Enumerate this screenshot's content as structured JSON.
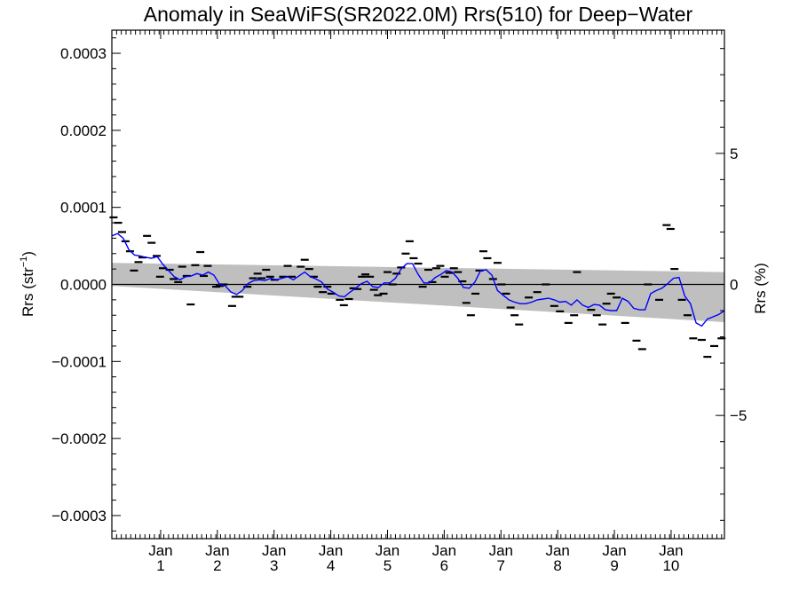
{
  "chart_data": {
    "type": "line",
    "title": "Anomaly in SeaWiFS(SR2022.0M) Rrs(510) for Deep−Water",
    "ylabel_left": {
      "main": "Rrs (str",
      "sup": "−1",
      "tail": ")"
    },
    "ylabel_right": "Rrs (%)",
    "xlim": [
      0,
      10.8
    ],
    "ylim": [
      -0.00033,
      0.00033
    ],
    "ylim_right": [
      -9.7,
      9.7
    ],
    "x_ticks": [
      {
        "x": 0.86,
        "line1": "Jan",
        "line2": "1"
      },
      {
        "x": 1.86,
        "line1": "Jan",
        "line2": "2"
      },
      {
        "x": 2.86,
        "line1": "Jan",
        "line2": "3"
      },
      {
        "x": 3.86,
        "line1": "Jan",
        "line2": "4"
      },
      {
        "x": 4.86,
        "line1": "Jan",
        "line2": "5"
      },
      {
        "x": 5.86,
        "line1": "Jan",
        "line2": "6"
      },
      {
        "x": 6.86,
        "line1": "Jan",
        "line2": "7"
      },
      {
        "x": 7.86,
        "line1": "Jan",
        "line2": "8"
      },
      {
        "x": 8.86,
        "line1": "Jan",
        "line2": "9"
      },
      {
        "x": 9.86,
        "line1": "Jan",
        "line2": "10"
      }
    ],
    "y_ticks_left": [
      {
        "v": 0.0003,
        "label": "0.0003"
      },
      {
        "v": 0.0002,
        "label": "0.0002"
      },
      {
        "v": 0.0001,
        "label": "0.0001"
      },
      {
        "v": 0.0,
        "label": "0.0000"
      },
      {
        "v": -0.0001,
        "label": "−0.0001"
      },
      {
        "v": -0.0002,
        "label": "−0.0002"
      },
      {
        "v": -0.0003,
        "label": "−0.0003"
      }
    ],
    "y_ticks_right": [
      {
        "v": 5,
        "label": "5"
      },
      {
        "v": 0,
        "label": "0"
      },
      {
        "v": -5,
        "label": "−5"
      }
    ],
    "zero_line": 0,
    "band": {
      "color": "#bfbfbf",
      "upper": [
        [
          0.0,
          2.8e-05
        ],
        [
          10.8,
          1.6e-05
        ]
      ],
      "lower": [
        [
          0.0,
          -2e-06
        ],
        [
          10.8,
          -4.9e-05
        ]
      ]
    },
    "series": [
      {
        "style": "dash-markers",
        "color": "#000000",
        "points": [
          [
            0.03,
            8.7e-05
          ],
          [
            0.11,
            8e-05
          ],
          [
            0.18,
            6.8e-05
          ],
          [
            0.24,
            5.6e-05
          ],
          [
            0.32,
            4.3e-05
          ],
          [
            0.39,
            1.8e-05
          ],
          [
            0.47,
            2.9e-05
          ],
          [
            0.54,
            3.5e-05
          ],
          [
            0.62,
            6.3e-05
          ],
          [
            0.7,
            5.4e-05
          ],
          [
            0.79,
            3.7e-05
          ],
          [
            0.85,
            1e-05
          ],
          [
            0.9,
            2.1e-05
          ],
          [
            1.02,
            1.9e-05
          ],
          [
            1.09,
            7e-06
          ],
          [
            1.17,
            3e-06
          ],
          [
            1.24,
            2.3e-05
          ],
          [
            1.32,
            1.1e-05
          ],
          [
            1.39,
            -2.6e-05
          ],
          [
            1.47,
            2.5e-05
          ],
          [
            1.56,
            4.2e-05
          ],
          [
            1.62,
            1.1e-05
          ],
          [
            1.69,
            2.4e-05
          ],
          [
            1.84,
            -3e-06
          ],
          [
            1.9,
            -2e-06
          ],
          [
            1.97,
            0.0
          ],
          [
            2.12,
            -2.8e-05
          ],
          [
            2.18,
            -1.6e-05
          ],
          [
            2.25,
            -1.6e-05
          ],
          [
            2.39,
            -3e-06
          ],
          [
            2.49,
            8e-06
          ],
          [
            2.57,
            1.4e-05
          ],
          [
            2.64,
            8e-06
          ],
          [
            2.72,
            1.9e-05
          ],
          [
            2.79,
            1e-05
          ],
          [
            2.87,
            6e-06
          ],
          [
            3.02,
            1e-05
          ],
          [
            3.1,
            2.4e-05
          ],
          [
            3.17,
            1e-05
          ],
          [
            3.33,
            2.3e-05
          ],
          [
            3.4,
            3.2e-05
          ],
          [
            3.48,
            2e-05
          ],
          [
            3.56,
            1e-05
          ],
          [
            3.63,
            -3e-06
          ],
          [
            3.72,
            -1e-05
          ],
          [
            3.8,
            -3e-06
          ],
          [
            3.87,
            -1.2e-05
          ],
          [
            4.02,
            -2e-05
          ],
          [
            4.09,
            -2.7e-05
          ],
          [
            4.18,
            -1.9e-05
          ],
          [
            4.26,
            -5e-06
          ],
          [
            4.33,
            -6e-06
          ],
          [
            4.41,
            1e-05
          ],
          [
            4.47,
            1.3e-05
          ],
          [
            4.55,
            1e-05
          ],
          [
            4.62,
            -7e-06
          ],
          [
            4.69,
            -1.4e-05
          ],
          [
            4.79,
            -1.2e-05
          ],
          [
            4.86,
            1.6e-05
          ],
          [
            4.95,
            0.0
          ],
          [
            5.02,
            1.4e-05
          ],
          [
            5.1,
            2.2e-05
          ],
          [
            5.18,
            4e-05
          ],
          [
            5.25,
            5.6e-05
          ],
          [
            5.32,
            3.4e-05
          ],
          [
            5.4,
            2.7e-05
          ],
          [
            5.48,
            -3e-06
          ],
          [
            5.58,
            1.9e-05
          ],
          [
            5.65,
            3e-06
          ],
          [
            5.72,
            2.1e-05
          ],
          [
            5.79,
            2.4e-05
          ],
          [
            5.87,
            1e-05
          ],
          [
            5.95,
            1.5e-05
          ],
          [
            6.03,
            2.1e-05
          ],
          [
            6.1,
            1.6e-05
          ],
          [
            6.18,
            4e-06
          ],
          [
            6.25,
            -2.4e-05
          ],
          [
            6.33,
            -4e-05
          ],
          [
            6.41,
            -1.2e-05
          ],
          [
            6.48,
            1.8e-05
          ],
          [
            6.55,
            4.3e-05
          ],
          [
            6.62,
            3.4e-05
          ],
          [
            6.72,
            7e-06
          ],
          [
            6.8,
            2.8e-05
          ],
          [
            6.87,
            0.0
          ],
          [
            6.95,
            -1.2e-05
          ],
          [
            7.03,
            -3e-05
          ],
          [
            7.1,
            -4e-05
          ],
          [
            7.18,
            -5.2e-05
          ],
          [
            7.35,
            -1.7e-05
          ],
          [
            7.5,
            -1e-05
          ],
          [
            7.65,
            0.0
          ],
          [
            7.8,
            -2.8e-05
          ],
          [
            7.9,
            -3.5e-05
          ],
          [
            8.05,
            -5e-05
          ],
          [
            8.15,
            -4e-05
          ],
          [
            8.2,
            1.6e-05
          ],
          [
            8.45,
            -3.3e-05
          ],
          [
            8.55,
            -4e-05
          ],
          [
            8.65,
            -5.2e-05
          ],
          [
            8.72,
            -2.5e-05
          ],
          [
            8.8,
            -1.2e-05
          ],
          [
            8.9,
            -1.7e-05
          ],
          [
            9.05,
            -5e-05
          ],
          [
            9.25,
            -7.3e-05
          ],
          [
            9.35,
            -8.4e-05
          ],
          [
            9.45,
            0.0
          ],
          [
            9.65,
            -2e-05
          ],
          [
            9.78,
            7.7e-05
          ],
          [
            9.85,
            7.2e-05
          ],
          [
            9.92,
            2e-05
          ],
          [
            10.05,
            -2e-05
          ],
          [
            10.15,
            -4e-05
          ],
          [
            10.25,
            -7e-05
          ],
          [
            10.4,
            -7.2e-05
          ],
          [
            10.5,
            -9.4e-05
          ],
          [
            10.62,
            -8e-05
          ],
          [
            10.75,
            -7e-05
          ]
        ]
      },
      {
        "style": "line",
        "color": "#0000ff",
        "points": [
          [
            0.0,
            6.3e-05
          ],
          [
            0.1,
            6.6e-05
          ],
          [
            0.2,
            6e-05
          ],
          [
            0.3,
            4.5e-05
          ],
          [
            0.4,
            3.8e-05
          ],
          [
            0.5,
            3.7e-05
          ],
          [
            0.6,
            3.5e-05
          ],
          [
            0.7,
            3.4e-05
          ],
          [
            0.8,
            3.6e-05
          ],
          [
            0.9,
            2.6e-05
          ],
          [
            1.0,
            1.8e-05
          ],
          [
            1.1,
            1e-05
          ],
          [
            1.2,
            6e-06
          ],
          [
            1.3,
            1e-05
          ],
          [
            1.4,
            1.1e-05
          ],
          [
            1.5,
            1.4e-05
          ],
          [
            1.6,
            1.2e-05
          ],
          [
            1.7,
            1.6e-05
          ],
          [
            1.8,
            1.2e-05
          ],
          [
            1.9,
            0.0
          ],
          [
            2.0,
            -2e-06
          ],
          [
            2.1,
            -1e-05
          ],
          [
            2.2,
            -1.3e-05
          ],
          [
            2.3,
            -8e-06
          ],
          [
            2.4,
            1e-06
          ],
          [
            2.5,
            5e-06
          ],
          [
            2.6,
            6e-06
          ],
          [
            2.7,
            5e-06
          ],
          [
            2.8,
            8e-06
          ],
          [
            2.9,
            6e-06
          ],
          [
            3.0,
            8e-06
          ],
          [
            3.1,
            1e-05
          ],
          [
            3.2,
            6e-06
          ],
          [
            3.3,
            1.1e-05
          ],
          [
            3.4,
            1.6e-05
          ],
          [
            3.5,
            1e-05
          ],
          [
            3.6,
            7e-06
          ],
          [
            3.7,
            3e-06
          ],
          [
            3.8,
            -6e-06
          ],
          [
            3.9,
            -1e-05
          ],
          [
            4.0,
            -1.5e-05
          ],
          [
            4.1,
            -1.6e-05
          ],
          [
            4.2,
            -1e-05
          ],
          [
            4.3,
            -5e-06
          ],
          [
            4.4,
            1e-06
          ],
          [
            4.5,
            4e-06
          ],
          [
            4.6,
            -3e-06
          ],
          [
            4.7,
            -4e-06
          ],
          [
            4.8,
            2e-06
          ],
          [
            4.9,
            2e-06
          ],
          [
            5.0,
            8e-06
          ],
          [
            5.1,
            2e-05
          ],
          [
            5.2,
            2.7e-05
          ],
          [
            5.3,
            2.7e-05
          ],
          [
            5.4,
            1.3e-05
          ],
          [
            5.5,
            2e-06
          ],
          [
            5.6,
            2e-06
          ],
          [
            5.7,
            9e-06
          ],
          [
            5.8,
            1.3e-05
          ],
          [
            5.9,
            1.8e-05
          ],
          [
            6.0,
            1.6e-05
          ],
          [
            6.1,
            8e-06
          ],
          [
            6.2,
            -4e-06
          ],
          [
            6.3,
            -5e-06
          ],
          [
            6.4,
            3e-06
          ],
          [
            6.5,
            1.8e-05
          ],
          [
            6.6,
            1.9e-05
          ],
          [
            6.7,
            1.2e-05
          ],
          [
            6.8,
            -8e-06
          ],
          [
            6.9,
            -1.4e-05
          ],
          [
            7.0,
            -2e-05
          ],
          [
            7.1,
            -2.3e-05
          ],
          [
            7.2,
            -2.5e-05
          ],
          [
            7.3,
            -2.5e-05
          ],
          [
            7.4,
            -2.3e-05
          ],
          [
            7.5,
            -2e-05
          ],
          [
            7.6,
            -1.9e-05
          ],
          [
            7.7,
            -1.8e-05
          ],
          [
            7.8,
            -2e-05
          ],
          [
            7.9,
            -2.3e-05
          ],
          [
            8.0,
            -2.2e-05
          ],
          [
            8.1,
            -2.7e-05
          ],
          [
            8.2,
            -2e-05
          ],
          [
            8.3,
            -2.7e-05
          ],
          [
            8.4,
            -3e-05
          ],
          [
            8.5,
            -2.6e-05
          ],
          [
            8.6,
            -2.7e-05
          ],
          [
            8.7,
            -3.3e-05
          ],
          [
            8.8,
            -3.4e-05
          ],
          [
            8.9,
            -3.4e-05
          ],
          [
            9.0,
            -1.8e-05
          ],
          [
            9.1,
            -2.2e-05
          ],
          [
            9.2,
            -3.1e-05
          ],
          [
            9.3,
            -3.3e-05
          ],
          [
            9.4,
            -3.3e-05
          ],
          [
            9.5,
            -1.2e-05
          ],
          [
            9.6,
            -8e-06
          ],
          [
            9.7,
            -5e-06
          ],
          [
            9.8,
            1e-06
          ],
          [
            9.9,
            8e-06
          ],
          [
            10.0,
            9e-06
          ],
          [
            10.1,
            -1.5e-05
          ],
          [
            10.2,
            -2.5e-05
          ],
          [
            10.3,
            -5e-05
          ],
          [
            10.4,
            -5.4e-05
          ],
          [
            10.5,
            -4.5e-05
          ],
          [
            10.6,
            -4.2e-05
          ],
          [
            10.7,
            -3.9e-05
          ],
          [
            10.8,
            -3.4e-05
          ]
        ]
      }
    ]
  }
}
